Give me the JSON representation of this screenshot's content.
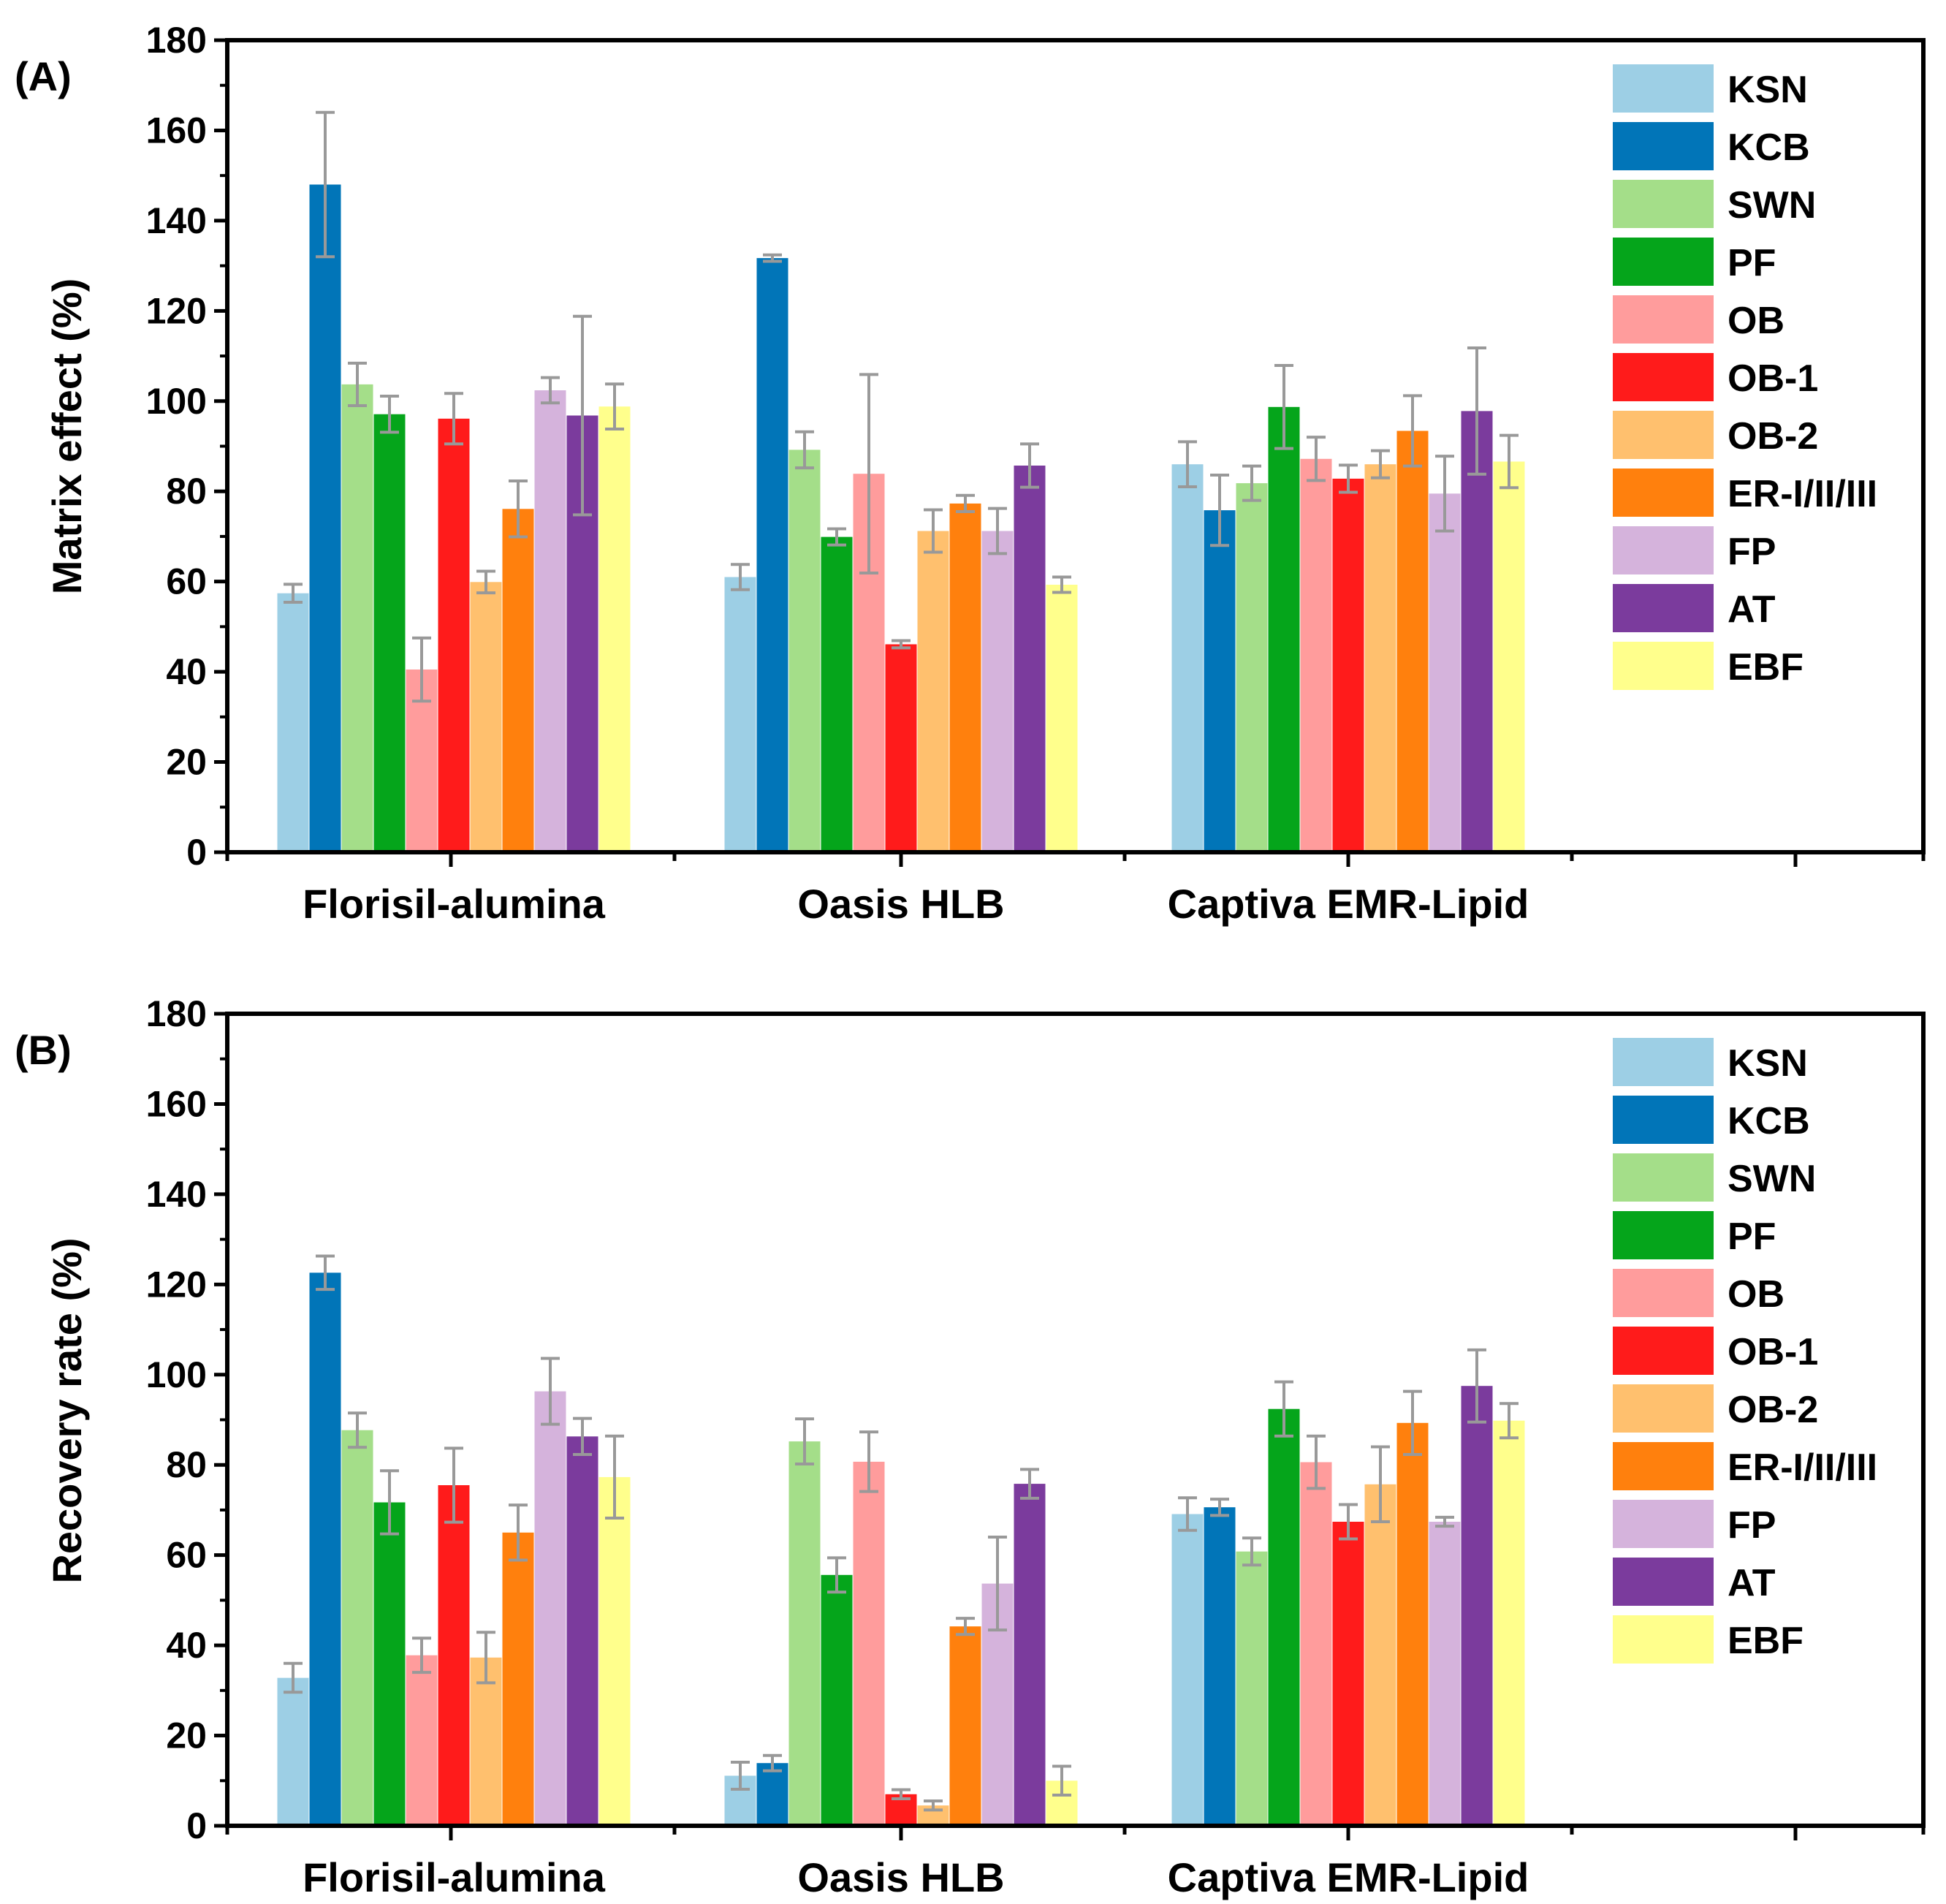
{
  "colors": {
    "KSN": "#9DCFE5",
    "KCB": "#0175B8",
    "SWN": "#A4DE89",
    "PF": "#05A51B",
    "OB": "#FF9C9C",
    "OB-1": "#FF1B1B",
    "OB-2": "#FFC06E",
    "ER-I/II/III": "#FF800D",
    "FP": "#D5B3DC",
    "AT": "#7B3B9D",
    "EBF": "#FFFF8C",
    "errorbar": "#999999"
  },
  "chart_data": [
    {
      "type": "bar",
      "panel_label": "(A)",
      "ylabel": "Matrix effect (%)",
      "xlabel": "",
      "ylim": [
        0,
        180
      ],
      "yticks": [
        "0",
        "20",
        "40",
        "60",
        "80",
        "100",
        "120",
        "140",
        "160",
        "180"
      ],
      "categories": [
        "Florisil-alumina",
        "Oasis HLB",
        "Captiva EMR-Lipid"
      ],
      "legend": [
        "KSN",
        "KCB",
        "SWN",
        "PF",
        "OB",
        "OB-1",
        "OB-2",
        "ER-I/II/III",
        "FP",
        "AT",
        "EBF"
      ],
      "legend_position": "top-right",
      "series": [
        {
          "name": "KSN",
          "values": [
            57.4,
            61.0,
            86.0
          ],
          "errors": [
            2.0,
            2.8,
            5.0
          ]
        },
        {
          "name": "KCB",
          "values": [
            148.0,
            131.7,
            75.8
          ],
          "errors": [
            16.0,
            0.7,
            7.8
          ]
        },
        {
          "name": "SWN",
          "values": [
            103.7,
            89.2,
            81.8
          ],
          "errors": [
            4.7,
            4.0,
            3.8
          ]
        },
        {
          "name": "PF",
          "values": [
            97.1,
            69.9,
            98.7
          ],
          "errors": [
            4.0,
            1.8,
            9.2
          ]
        },
        {
          "name": "OB",
          "values": [
            40.5,
            83.9,
            87.2
          ],
          "errors": [
            7.0,
            22.0,
            4.8
          ]
        },
        {
          "name": "OB-1",
          "values": [
            96.1,
            46.1,
            82.8
          ],
          "errors": [
            5.6,
            0.8,
            3.0
          ]
        },
        {
          "name": "OB-2",
          "values": [
            59.9,
            71.2,
            86.0
          ],
          "errors": [
            2.4,
            4.7,
            3.0
          ]
        },
        {
          "name": "ER-I/II/III",
          "values": [
            76.1,
            77.3,
            93.4
          ],
          "errors": [
            6.2,
            1.8,
            7.8
          ]
        },
        {
          "name": "FP",
          "values": [
            102.4,
            71.2,
            79.5
          ],
          "errors": [
            2.8,
            5.0,
            8.3
          ]
        },
        {
          "name": "AT",
          "values": [
            96.8,
            85.7,
            97.8
          ],
          "errors": [
            22.0,
            4.8,
            14.0
          ]
        },
        {
          "name": "EBF",
          "values": [
            98.8,
            59.3,
            86.6
          ],
          "errors": [
            5.0,
            1.7,
            5.8
          ]
        }
      ]
    },
    {
      "type": "bar",
      "panel_label": "(B)",
      "ylabel": "Recovery rate (%)",
      "xlabel": "",
      "ylim": [
        0,
        180
      ],
      "yticks": [
        "0",
        "20",
        "40",
        "60",
        "80",
        "100",
        "120",
        "140",
        "160",
        "180"
      ],
      "categories": [
        "Florisil-alumina",
        "Oasis HLB",
        "Captiva EMR-Lipid"
      ],
      "legend": [
        "KSN",
        "KCB",
        "SWN",
        "PF",
        "OB",
        "OB-1",
        "OB-2",
        "ER-I/II/III",
        "FP",
        "AT",
        "EBF"
      ],
      "legend_position": "top-right",
      "series": [
        {
          "name": "KSN",
          "values": [
            32.8,
            11.1,
            69.1
          ],
          "errors": [
            3.2,
            3.0,
            3.6
          ]
        },
        {
          "name": "KCB",
          "values": [
            122.6,
            13.9,
            70.6
          ],
          "errors": [
            3.7,
            1.7,
            1.8
          ]
        },
        {
          "name": "SWN",
          "values": [
            87.7,
            85.2,
            60.8
          ],
          "errors": [
            3.8,
            5.0,
            3.0
          ]
        },
        {
          "name": "PF",
          "values": [
            71.7,
            55.6,
            92.4
          ],
          "errors": [
            7.0,
            3.8,
            6.0
          ]
        },
        {
          "name": "OB",
          "values": [
            37.8,
            80.7,
            80.6
          ],
          "errors": [
            3.8,
            6.6,
            5.8
          ]
        },
        {
          "name": "OB-1",
          "values": [
            75.5,
            7.0,
            67.4
          ],
          "errors": [
            8.2,
            1.0,
            3.8
          ]
        },
        {
          "name": "OB-2",
          "values": [
            37.3,
            4.5,
            75.7
          ],
          "errors": [
            5.6,
            1.0,
            8.3
          ]
        },
        {
          "name": "ER-I/II/III",
          "values": [
            65.0,
            44.2,
            89.3
          ],
          "errors": [
            6.1,
            1.8,
            7.0
          ]
        },
        {
          "name": "FP",
          "values": [
            96.3,
            53.7,
            67.4
          ],
          "errors": [
            7.3,
            10.3,
            1.0
          ]
        },
        {
          "name": "AT",
          "values": [
            86.3,
            75.8,
            97.5
          ],
          "errors": [
            4.0,
            3.2,
            8.0
          ]
        },
        {
          "name": "EBF",
          "values": [
            77.3,
            10.0,
            89.8
          ],
          "errors": [
            9.1,
            3.2,
            3.8
          ]
        }
      ]
    }
  ]
}
